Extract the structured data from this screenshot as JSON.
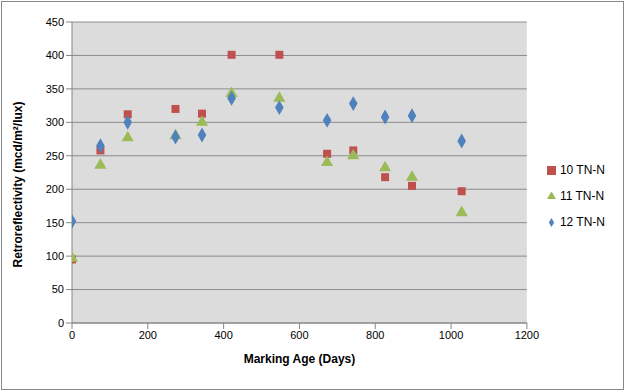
{
  "chart_data": {
    "type": "scatter",
    "x_label": "Marking Age (Days)",
    "y_label": "Retroreflectivity (mcd/m²/lux)",
    "x": [
      0,
      75,
      147,
      273,
      343,
      421,
      547,
      673,
      742,
      826,
      897,
      1028
    ],
    "series": [
      {
        "name": "10 TN-N",
        "color": "#c0504d",
        "marker": "square",
        "values": [
          95,
          258,
          312,
          320,
          313,
          401,
          401,
          253,
          258,
          218,
          205,
          197
        ]
      },
      {
        "name": "11 TN-N",
        "color": "#9bbb59",
        "marker": "triangle",
        "values": [
          97,
          236,
          277,
          280,
          300,
          343,
          336,
          240,
          250,
          232,
          218,
          165
        ]
      },
      {
        "name": "12 TN-N",
        "color": "#4f81bd",
        "marker": "diamond",
        "values": [
          152,
          265,
          300,
          278,
          281,
          336,
          322,
          303,
          328,
          308,
          310,
          272
        ]
      }
    ],
    "xlim": [
      0,
      1200
    ],
    "xticks": [
      0,
      200,
      400,
      600,
      800,
      1000,
      1200
    ],
    "ylim": [
      0,
      450
    ],
    "yticks": [
      0,
      50,
      100,
      150,
      200,
      250,
      300,
      350,
      400,
      450
    ],
    "grid": true,
    "legend": "right"
  }
}
